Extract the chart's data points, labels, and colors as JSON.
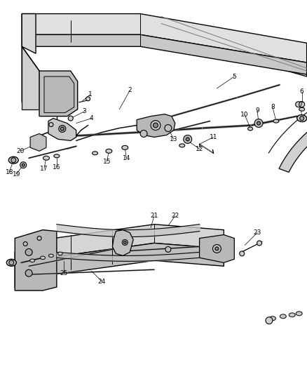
{
  "bg_color": "#ffffff",
  "line_color": "#000000",
  "label_color": "#000000",
  "fig_width": 4.39,
  "fig_height": 5.33,
  "dpi": 100
}
